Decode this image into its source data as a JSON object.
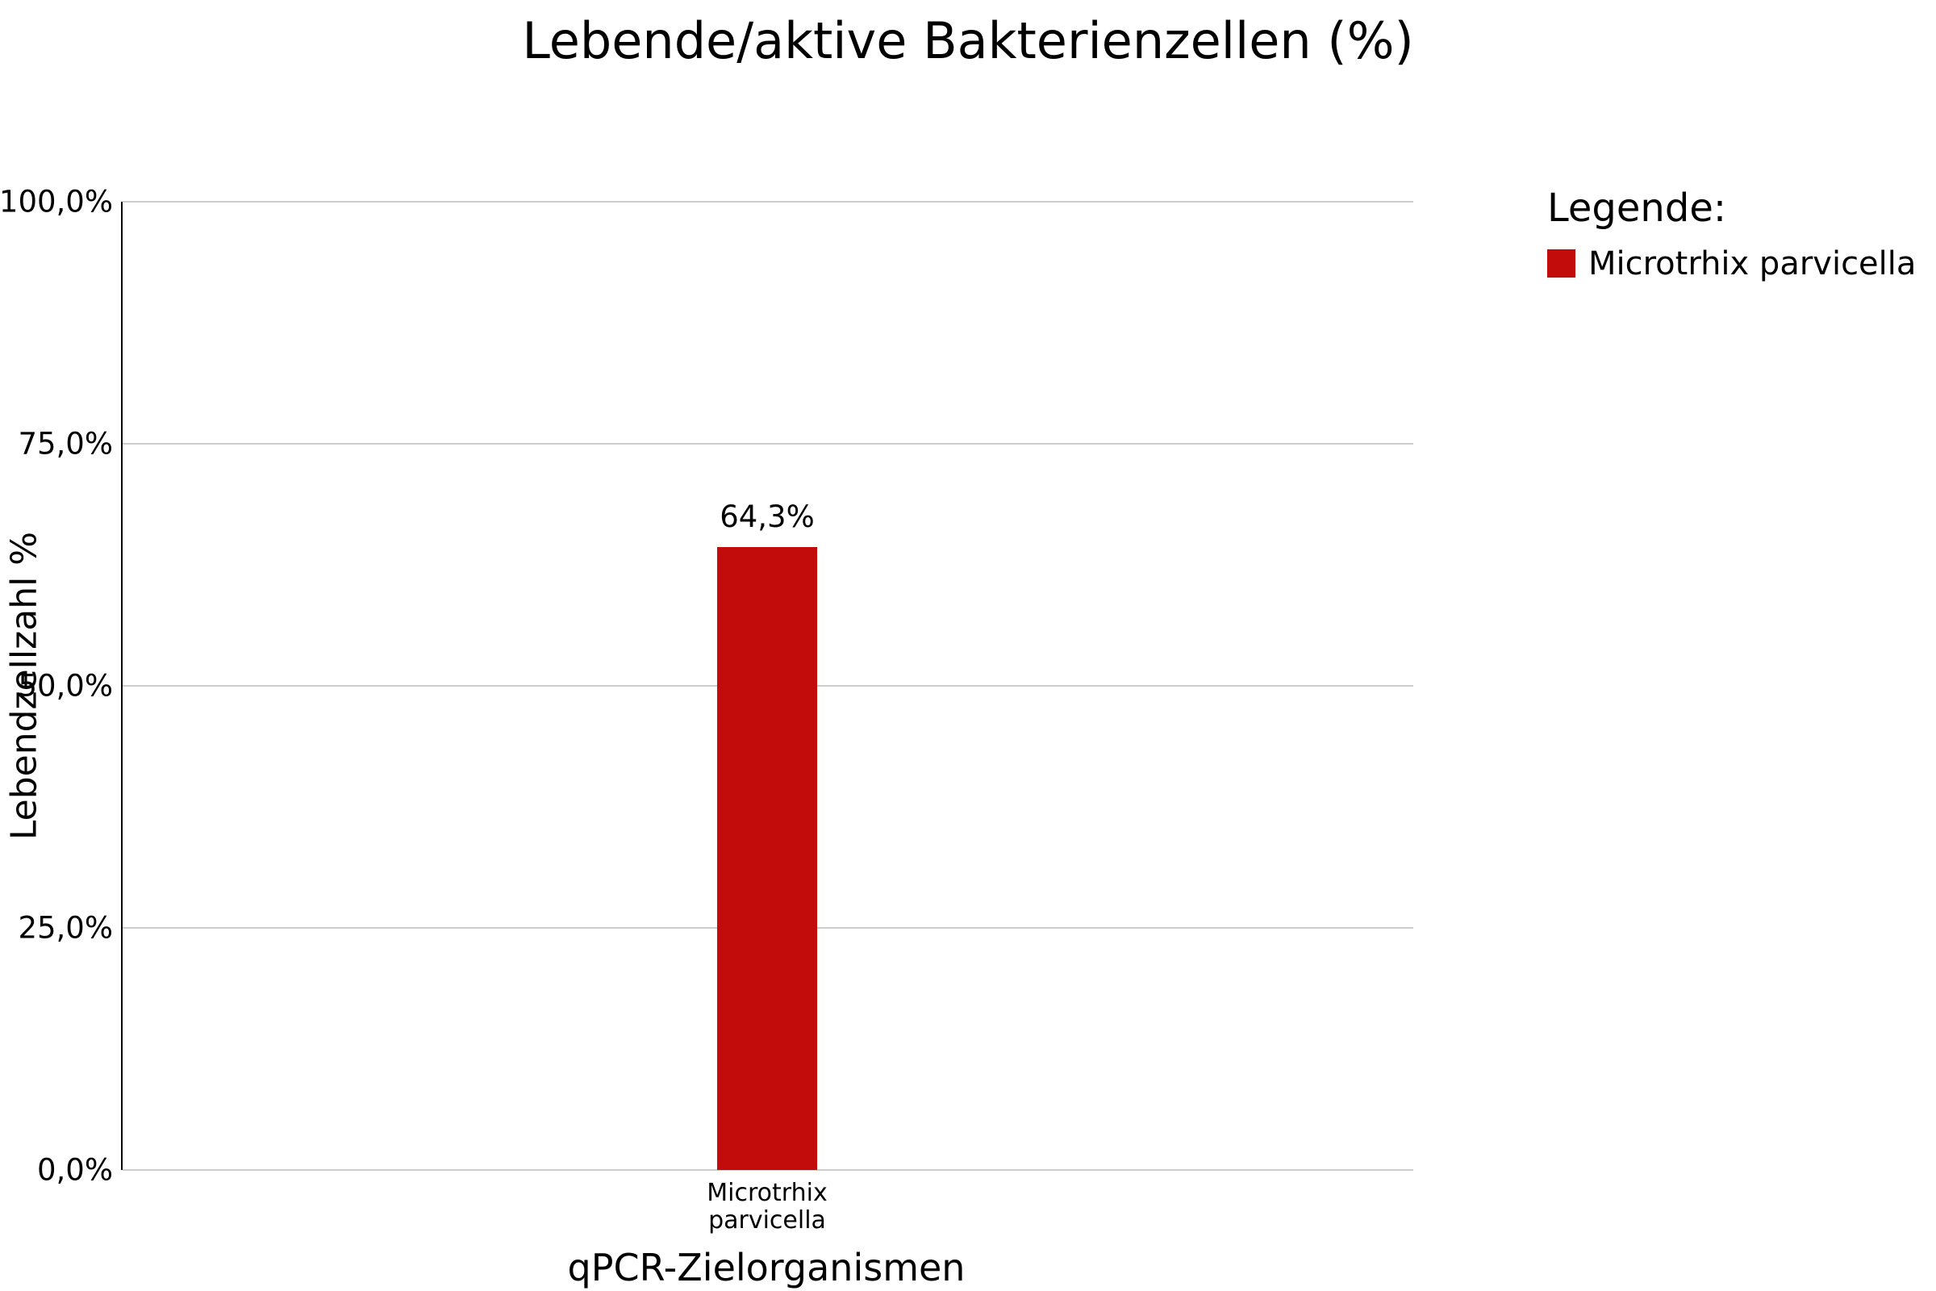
{
  "chart_data": {
    "type": "bar",
    "title": "Lebende/aktive Bakterienzellen (%)",
    "xlabel": "qPCR-Zielorganismen",
    "ylabel": "Lebendzellzahl %",
    "categories": [
      "Microtrhix parvicella"
    ],
    "x_tick_lines": [
      [
        "Microtrhix",
        "parvicella"
      ]
    ],
    "series": [
      {
        "name": "Microtrhix parvicella",
        "values": [
          64.3
        ],
        "color": "#c20b0b"
      }
    ],
    "value_labels": [
      "64,3%"
    ],
    "y_ticks": [
      {
        "label": "100,0%",
        "value": 100
      },
      {
        "label": "75,0%",
        "value": 75
      },
      {
        "label": "50,0%",
        "value": 50
      },
      {
        "label": "25,0%",
        "value": 25
      },
      {
        "label": "0,0%",
        "value": 0
      }
    ],
    "ylim": [
      0,
      100
    ],
    "grid": true,
    "colors": {
      "bar": "#c20b0b",
      "gridline": "#cccccc",
      "axis": "#000000",
      "text": "#000000",
      "background": "#ffffff"
    },
    "legend": {
      "title": "Legende:",
      "position": "right",
      "items": [
        {
          "label": "Microtrhix parvicella",
          "color": "#c20b0b"
        }
      ]
    }
  }
}
